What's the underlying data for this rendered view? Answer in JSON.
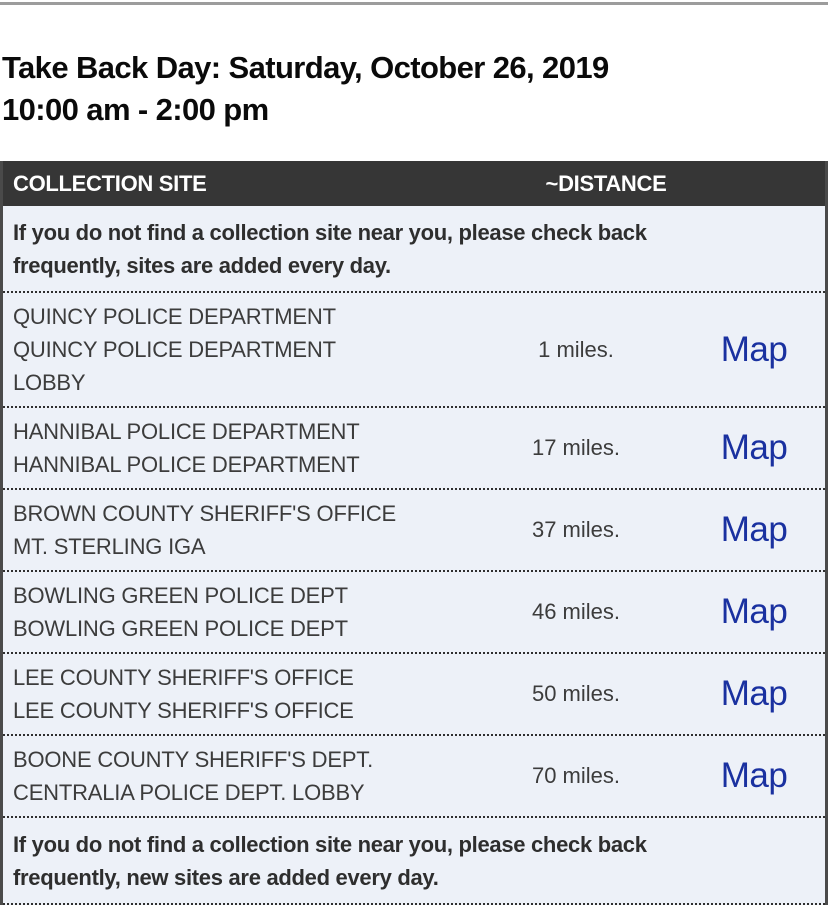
{
  "page": {
    "title_line1": "Take Back Day: Saturday, October 26, 2019",
    "title_line2": "10:00 am - 2:00 pm"
  },
  "table": {
    "columns": [
      {
        "label": "COLLECTION SITE"
      },
      {
        "label": "~DISTANCE"
      }
    ],
    "notice_top": {
      "line1": "If you do not find a collection site near you, please check back",
      "line2": "frequently, sites are added every day."
    },
    "notice_bottom": {
      "line1": "If you do not find a collection site near you, please check back",
      "line2": "frequently, new sites are added every day."
    },
    "map_link_label": "Map",
    "rows": [
      {
        "site_lines": [
          "QUINCY POLICE DEPARTMENT",
          "QUINCY POLICE DEPARTMENT",
          "LOBBY"
        ],
        "distance": "1 miles."
      },
      {
        "site_lines": [
          "HANNIBAL POLICE DEPARTMENT",
          "HANNIBAL POLICE DEPARTMENT"
        ],
        "distance": "17 miles."
      },
      {
        "site_lines": [
          "BROWN COUNTY SHERIFF'S OFFICE",
          "MT. STERLING IGA"
        ],
        "distance": "37 miles."
      },
      {
        "site_lines": [
          "BOWLING GREEN POLICE DEPT",
          "BOWLING GREEN POLICE DEPT"
        ],
        "distance": "46 miles."
      },
      {
        "site_lines": [
          "LEE COUNTY SHERIFF'S OFFICE",
          "LEE COUNTY SHERIFF'S OFFICE"
        ],
        "distance": "50 miles."
      },
      {
        "site_lines": [
          "BOONE COUNTY SHERIFF'S DEPT.",
          "CENTRALIA POLICE DEPT. LOBBY"
        ],
        "distance": "70 miles."
      }
    ],
    "colors": {
      "header_bg": "#363636",
      "header_text": "#ffffff",
      "row_bg": "#edf1f8",
      "map_link_blue": "#1a31a0",
      "dotted_border": "#2f2f2f",
      "side_border": "#4a4a4a",
      "top_rule": "#9c9c9c"
    }
  }
}
